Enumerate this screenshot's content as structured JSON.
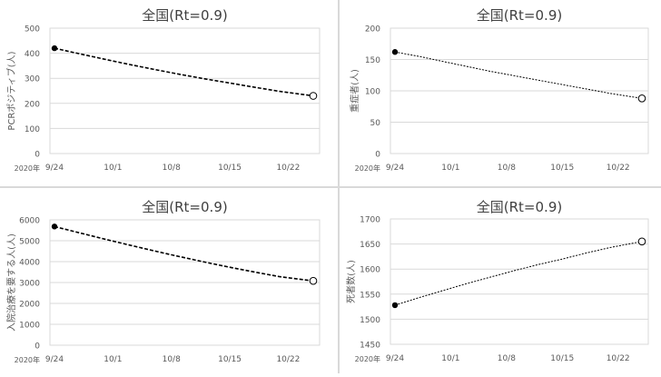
{
  "chart_data": [
    {
      "type": "line",
      "title": "全国(Rt=0.9)",
      "ylabel": "PCRポジティブ(人)",
      "year_label": "2020年",
      "xlim": [
        "9/24",
        "10/25"
      ],
      "x_ticks": [
        "9/24",
        "10/1",
        "10/8",
        "10/15",
        "10/22"
      ],
      "ylim": [
        0,
        500
      ],
      "y_ticks": [
        0,
        100,
        200,
        300,
        400,
        500
      ],
      "grid": true,
      "series": [
        {
          "x": [
            "9/24",
            "9/27",
            "9/30",
            "10/3",
            "10/6",
            "10/9",
            "10/12",
            "10/15",
            "10/18",
            "10/21",
            "10/25"
          ],
          "values": [
            420,
            398,
            376,
            355,
            335,
            316,
            298,
            281,
            264,
            248,
            230
          ]
        }
      ],
      "start_marker": "filled-circle",
      "end_marker": "open-circle"
    },
    {
      "type": "line",
      "title": "全国(Rt=0.9)",
      "ylabel": "重症者(人)",
      "year_label": "2020年",
      "xlim": [
        "9/24",
        "10/25"
      ],
      "x_ticks": [
        "9/24",
        "10/1",
        "10/8",
        "10/15",
        "10/22"
      ],
      "ylim": [
        0,
        200
      ],
      "y_ticks": [
        0,
        50,
        100,
        150,
        200
      ],
      "grid": true,
      "series": [
        {
          "x": [
            "9/24",
            "9/27",
            "9/30",
            "10/3",
            "10/6",
            "10/9",
            "10/12",
            "10/15",
            "10/18",
            "10/21",
            "10/25"
          ],
          "values": [
            162,
            155,
            147,
            139,
            131,
            124,
            117,
            110,
            103,
            96,
            88
          ]
        }
      ],
      "start_marker": "filled-circle",
      "end_marker": "open-circle"
    },
    {
      "type": "line",
      "title": "全国(Rt=0.9)",
      "ylabel": "入院治療を要する人(人)",
      "year_label": "2020年",
      "xlim": [
        "9/24",
        "10/25"
      ],
      "x_ticks": [
        "9/24",
        "10/1",
        "10/8",
        "10/15",
        "10/22"
      ],
      "ylim": [
        0,
        6000
      ],
      "y_ticks": [
        0,
        1000,
        2000,
        3000,
        4000,
        5000,
        6000
      ],
      "grid": true,
      "series": [
        {
          "x": [
            "9/24",
            "9/27",
            "9/30",
            "10/3",
            "10/6",
            "10/9",
            "10/12",
            "10/15",
            "10/18",
            "10/21",
            "10/25"
          ],
          "values": [
            5680,
            5380,
            5080,
            4790,
            4510,
            4240,
            3980,
            3730,
            3500,
            3280,
            3080
          ]
        }
      ],
      "start_marker": "filled-circle",
      "end_marker": "open-circle"
    },
    {
      "type": "line",
      "title": "全国(Rt=0.9)",
      "ylabel": "死者数(人)",
      "year_label": "2020年",
      "xlim": [
        "9/24",
        "10/25"
      ],
      "x_ticks": [
        "9/24",
        "10/1",
        "10/8",
        "10/15",
        "10/22"
      ],
      "ylim": [
        1450,
        1700
      ],
      "y_ticks": [
        1450,
        1500,
        1550,
        1600,
        1650,
        1700
      ],
      "grid": true,
      "series": [
        {
          "x": [
            "9/24",
            "9/27",
            "9/30",
            "10/3",
            "10/6",
            "10/9",
            "10/12",
            "10/15",
            "10/18",
            "10/21",
            "10/25"
          ],
          "values": [
            1528,
            1543,
            1557,
            1571,
            1584,
            1597,
            1609,
            1620,
            1632,
            1643,
            1655
          ]
        }
      ],
      "start_marker": "filled-circle",
      "end_marker": "open-circle"
    }
  ],
  "colors": {
    "line": "#000000",
    "grid": "#d9d9d9",
    "axis_text": "#595959",
    "title_text": "#404040",
    "divider": "#d9d9d9"
  }
}
